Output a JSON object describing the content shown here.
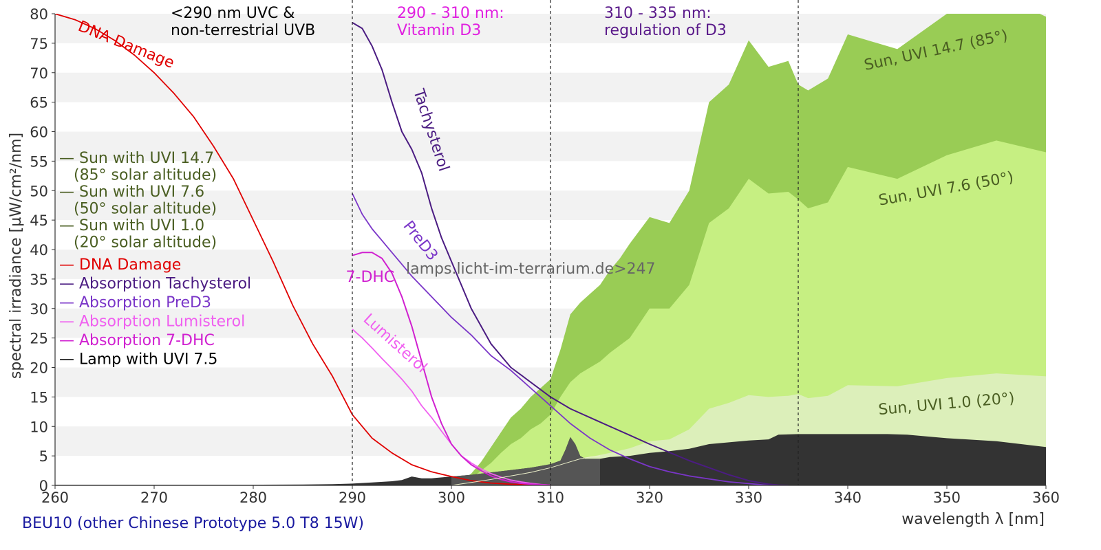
{
  "chart_data": {
    "type": "area",
    "xlabel": "wavelength λ [nm]",
    "ylabel": "spectral irradiance [µW/cm²/nm]",
    "xlim": [
      260,
      360
    ],
    "ylim": [
      0,
      80
    ],
    "x_ticks": [
      "260",
      "270",
      "280",
      "290",
      "300",
      "310",
      "320",
      "330",
      "340",
      "350",
      "360"
    ],
    "y_ticks": [
      "0",
      "5",
      "10",
      "15",
      "20",
      "25",
      "30",
      "35",
      "40",
      "45",
      "50",
      "55",
      "60",
      "65",
      "70",
      "75",
      "80"
    ],
    "grid": "horizontal bands",
    "legend_position": "left",
    "watermark": "lamps.licht-im-terrarium.de>247",
    "footer": "BEU10 (other Chinese Prototype 5.0 T8 15W)",
    "regions": [
      {
        "x": 290,
        "label_lines": [
          "<290 nm UVC &",
          "non-terrestrial UVB"
        ],
        "color": "#000000"
      },
      {
        "x": 310,
        "label_lines": [
          "290 - 310 nm:",
          "Vitamin D3"
        ],
        "color": "#e020e0"
      },
      {
        "x": 335,
        "label_lines": [
          "310 - 335 nm:",
          "regulation of D3"
        ],
        "color": "#5a1a8a"
      }
    ],
    "legend": [
      {
        "lines": [
          "— Sun with UVI 14.7",
          "   (85° solar altitude)"
        ],
        "color": "#4a5e22"
      },
      {
        "lines": [
          "— Sun with UVI 7.6",
          "   (50° solar altitude)"
        ],
        "color": "#4a5e22"
      },
      {
        "lines": [
          "— Sun with UVI 1.0",
          "   (20° solar altitude)"
        ],
        "color": "#4a5e22"
      },
      {
        "lines": [
          "— DNA Damage"
        ],
        "color": "#e00000"
      },
      {
        "lines": [
          "— Absorption Tachysterol"
        ],
        "color": "#4b1c82"
      },
      {
        "lines": [
          "— Absorption PreD3"
        ],
        "color": "#7a35c8"
      },
      {
        "lines": [
          "— Absorption Lumisterol"
        ],
        "color": "#f060f0"
      },
      {
        "lines": [
          "— Absorption 7-DHC"
        ],
        "color": "#d020d0"
      },
      {
        "lines": [
          "— Lamp with UVI 7.5"
        ],
        "color": "#000000"
      }
    ],
    "areas": [
      {
        "name": "Sun, UVI 14.7 (85°)",
        "color": "#99cc55",
        "label": {
          "text": "Sun, UVI 14.7 (85°)",
          "x": 349,
          "y": 73,
          "angle": -12,
          "color": "#4a5e22"
        },
        "x": [
          300,
          301,
          302,
          303,
          304,
          305,
          306,
          307,
          308,
          309,
          310,
          311,
          312,
          313,
          314,
          315,
          316,
          317,
          318,
          320,
          322,
          324,
          326,
          328,
          330,
          332,
          334,
          335,
          336,
          338,
          340,
          345,
          350,
          355,
          360
        ],
        "y": [
          0,
          0.8,
          2,
          4,
          6.5,
          9,
          11.5,
          13,
          15,
          16.5,
          18,
          23,
          29,
          31,
          32.5,
          34,
          36.5,
          38.5,
          41,
          45.5,
          44.5,
          50,
          65,
          68,
          75.5,
          71,
          72,
          68,
          67,
          69,
          76.5,
          74,
          80,
          83.5,
          79.5
        ]
      },
      {
        "name": "Sun, UVI 7.6 (50°)",
        "color": "#c6ef82",
        "label": {
          "text": "Sun, UVI 7.6 (50°)",
          "x": 350,
          "y": 49.5,
          "angle": -10,
          "color": "#4a5e22"
        },
        "x": [
          300,
          301,
          302,
          303,
          304,
          305,
          306,
          307,
          308,
          309,
          310,
          311,
          312,
          313,
          314,
          315,
          316,
          318,
          320,
          322,
          324,
          326,
          328,
          330,
          332,
          334,
          335,
          336,
          338,
          340,
          345,
          350,
          355,
          360
        ],
        "y": [
          0,
          0.4,
          1.2,
          2.5,
          3.8,
          5.5,
          7,
          8,
          9.5,
          10.5,
          12,
          15,
          17.5,
          19,
          20,
          21,
          22.5,
          25,
          30,
          30,
          34,
          44.5,
          47,
          52,
          49.5,
          49.8,
          48.5,
          47,
          48,
          54,
          52,
          56,
          58.5,
          56.5
        ]
      },
      {
        "name": "Sun, UVI 1.0 (20°)",
        "color": "#dcefba",
        "label": {
          "text": "Sun, UVI 1.0 (20°)",
          "x": 350,
          "y": 13,
          "angle": -5,
          "color": "#4a5e22"
        },
        "x": [
          300,
          302,
          304,
          306,
          308,
          310,
          312,
          314,
          316,
          318,
          320,
          322,
          324,
          326,
          328,
          330,
          332,
          334,
          335,
          336,
          338,
          340,
          345,
          350,
          355,
          360
        ],
        "y": [
          0,
          0.5,
          1,
          1.6,
          2.3,
          3,
          4,
          4.8,
          5.5,
          6.3,
          7.5,
          7.8,
          9.5,
          13,
          14,
          15.3,
          15,
          15.2,
          15.5,
          14.8,
          15.2,
          17,
          16.8,
          18.2,
          19,
          18.5
        ]
      },
      {
        "name": "Lamp with UVI 7.5",
        "color": "#333333",
        "x": [
          260,
          265,
          270,
          275,
          280,
          285,
          288,
          290,
          292,
          294,
          295,
          296,
          297,
          298,
          300,
          302,
          304,
          306,
          308,
          309,
          310,
          311,
          311.5,
          312,
          312.5,
          313,
          313.5,
          314,
          315,
          316,
          318,
          320,
          322,
          324,
          326,
          328,
          330,
          332,
          333,
          335,
          340,
          344,
          346,
          350,
          355,
          360
        ],
        "y": [
          0.1,
          0.1,
          0.1,
          0.1,
          0.1,
          0.15,
          0.2,
          0.3,
          0.5,
          0.7,
          0.9,
          1.5,
          1.2,
          1.2,
          1.5,
          1.8,
          2.2,
          2.6,
          3.0,
          3.3,
          3.6,
          4.2,
          6,
          8.2,
          7,
          5,
          4.5,
          4.5,
          4.5,
          4.8,
          5.0,
          5.5,
          5.8,
          6.2,
          7.0,
          7.3,
          7.6,
          7.8,
          8.6,
          8.7,
          8.7,
          8.7,
          8.6,
          8.0,
          7.5,
          6.5
        ]
      }
    ],
    "series": [
      {
        "name": "DNA Damage",
        "color": "#e00000",
        "width": 1.8,
        "label": {
          "text": "DNA Damage",
          "x": 267,
          "y": 74,
          "angle": 22,
          "color": "#e00000"
        },
        "x": [
          260,
          262,
          264,
          266,
          268,
          270,
          272,
          274,
          276,
          278,
          280,
          282,
          284,
          286,
          288,
          290,
          292,
          294,
          296,
          298,
          300,
          302,
          304,
          306,
          308,
          310
        ],
        "y": [
          80,
          79,
          77.5,
          75.5,
          73,
          70,
          66.5,
          62.5,
          57.5,
          52,
          45,
          38,
          30.5,
          24,
          18.5,
          12,
          8,
          5.5,
          3.5,
          2.3,
          1.5,
          0.8,
          0.4,
          0.2,
          0.1,
          0.05
        ]
      },
      {
        "name": "Absorption Tachysterol",
        "color": "#4b1c82",
        "width": 2,
        "label": {
          "text": "Tachysterol",
          "x": 297.5,
          "y": 60,
          "angle": 72,
          "color": "#4b1c82"
        },
        "x": [
          290,
          291,
          292,
          293,
          294,
          295,
          296,
          297,
          298,
          299,
          300,
          302,
          304,
          306,
          308,
          310,
          312,
          314,
          316,
          318,
          320,
          322,
          324,
          326,
          328,
          330,
          332,
          333,
          334
        ],
        "y": [
          78.5,
          77.5,
          74.5,
          70.5,
          65,
          60,
          57,
          53,
          47,
          42,
          38,
          30,
          24,
          20,
          17.5,
          15,
          13,
          11.5,
          10,
          8.5,
          7,
          5.6,
          4.2,
          3,
          1.8,
          0.8,
          0.2,
          0.05,
          0.0
        ]
      },
      {
        "name": "Absorption PreD3",
        "color": "#7a35c8",
        "width": 1.8,
        "label": {
          "text": "PreD3",
          "x": 296.5,
          "y": 41,
          "angle": 52,
          "color": "#7a35c8"
        },
        "x": [
          290,
          291,
          292,
          293,
          294,
          295,
          296,
          298,
          300,
          302,
          304,
          306,
          308,
          310,
          312,
          314,
          316,
          318,
          320,
          322,
          324,
          326,
          328,
          330,
          331,
          332
        ],
        "y": [
          49.5,
          46,
          43.5,
          41.5,
          39.5,
          37.5,
          35.5,
          32,
          28.5,
          25.5,
          22,
          19.5,
          16.5,
          13.5,
          10.5,
          8,
          6,
          4.5,
          3.2,
          2.3,
          1.6,
          1.1,
          0.6,
          0.3,
          0.15,
          0.0
        ]
      },
      {
        "name": "Absorption Lumisterol",
        "color": "#f060f0",
        "width": 1.8,
        "label": {
          "text": "Lumisterol",
          "x": 294,
          "y": 23.5,
          "angle": 42,
          "color": "#f060f0"
        },
        "x": [
          290,
          291,
          292,
          293,
          294,
          295,
          296,
          297,
          298,
          299,
          300,
          301,
          302,
          303,
          304,
          305,
          306,
          307,
          308,
          309,
          310
        ],
        "y": [
          26.5,
          25,
          23.3,
          21.5,
          19.8,
          18,
          16,
          13.5,
          11.5,
          9.2,
          7,
          5,
          3.8,
          2.8,
          2.0,
          1.4,
          0.9,
          0.6,
          0.35,
          0.15,
          0.05
        ]
      },
      {
        "name": "Absorption 7-DHC",
        "color": "#d020d0",
        "width": 2,
        "label": {
          "text": "7-DHC",
          "x": 291.8,
          "y": 34.5,
          "angle": 0,
          "color": "#d020d0"
        },
        "x": [
          290,
          291,
          292,
          293,
          294,
          295,
          296,
          297,
          298,
          299,
          300,
          301,
          302,
          303,
          304,
          305,
          306,
          307,
          308,
          309,
          310
        ],
        "y": [
          39,
          39.5,
          39.5,
          38.5,
          36,
          32,
          27,
          21,
          15,
          10.5,
          7,
          5,
          3.5,
          2.5,
          1.6,
          1.0,
          0.6,
          0.35,
          0.2,
          0.1,
          0.05
        ]
      },
      {
        "name": "Lamp outline",
        "color": "#eef2cc",
        "width": 1,
        "x": [
          300,
          302,
          304,
          306,
          308,
          310,
          312,
          313,
          314,
          315
        ],
        "y": [
          0,
          0.5,
          1.0,
          1.6,
          2.2,
          3.0,
          4.0,
          4.5,
          4.8,
          5.0
        ]
      }
    ]
  }
}
